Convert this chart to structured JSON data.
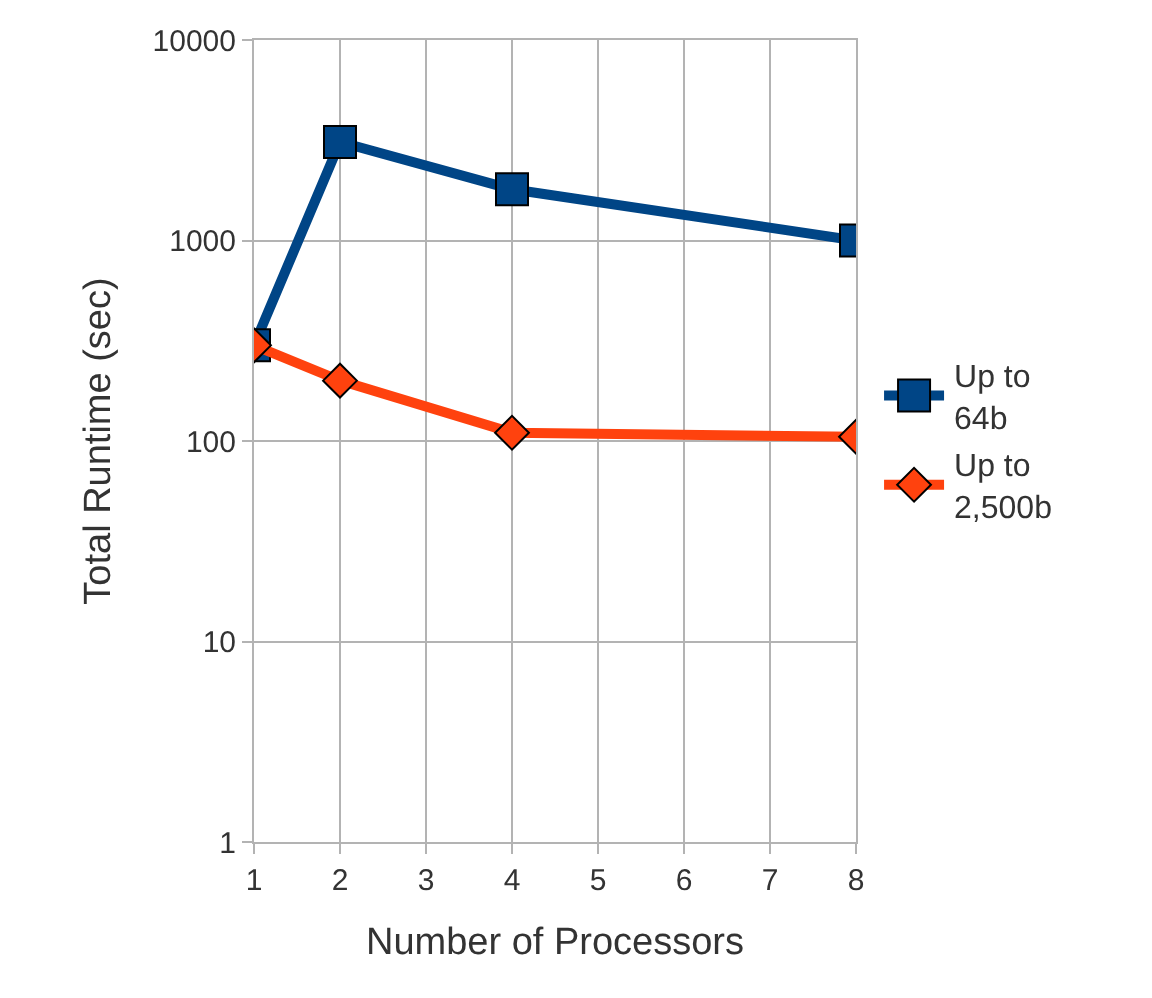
{
  "chart_data": {
    "type": "line",
    "xlabel": "Number of Processors",
    "ylabel": "Total Runtime (sec)",
    "x": [
      1,
      2,
      4,
      8
    ],
    "series": [
      {
        "name": "Up to 64b",
        "color": "#004586",
        "values": [
          300,
          3100,
          1800,
          1000
        ],
        "marker": "square"
      },
      {
        "name": "Up to 2,500b",
        "color": "#ff420e",
        "values": [
          300,
          200,
          110,
          105
        ],
        "marker": "diamond"
      }
    ],
    "xlim": [
      1,
      8
    ],
    "xticks": [
      1,
      2,
      3,
      4,
      5,
      6,
      7,
      8
    ],
    "ylim": [
      1,
      10000
    ],
    "yticks": [
      1,
      10,
      100,
      1000,
      10000
    ],
    "log": "y",
    "grid": true,
    "legend": "right",
    "line_style": "solid"
  }
}
